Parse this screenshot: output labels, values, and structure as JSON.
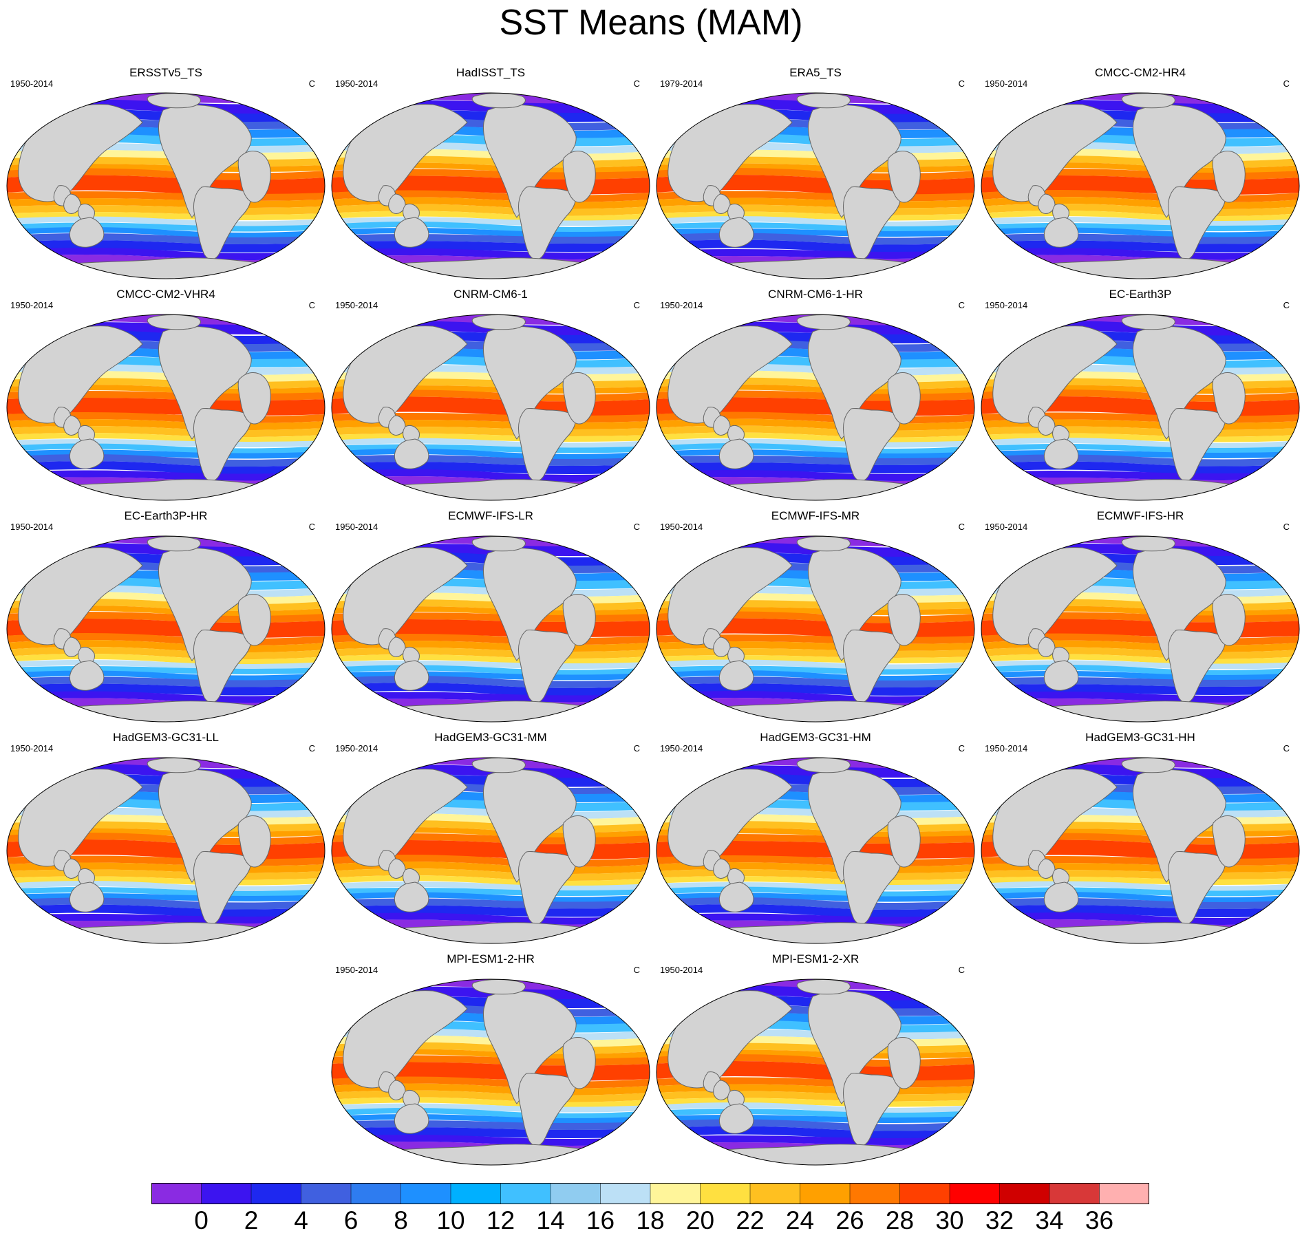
{
  "title": "SST Means (MAM)",
  "units": "C",
  "panels": [
    {
      "name": "ERSSTv5_TS",
      "years": "1950-2014"
    },
    {
      "name": "HadISST_TS",
      "years": "1950-2014"
    },
    {
      "name": "ERA5_TS",
      "years": "1979-2014"
    },
    {
      "name": "CMCC-CM2-HR4",
      "years": "1950-2014"
    },
    {
      "name": "CMCC-CM2-VHR4",
      "years": "1950-2014"
    },
    {
      "name": "CNRM-CM6-1",
      "years": "1950-2014"
    },
    {
      "name": "CNRM-CM6-1-HR",
      "years": "1950-2014"
    },
    {
      "name": "EC-Earth3P",
      "years": "1950-2014"
    },
    {
      "name": "EC-Earth3P-HR",
      "years": "1950-2014"
    },
    {
      "name": "ECMWF-IFS-LR",
      "years": "1950-2014"
    },
    {
      "name": "ECMWF-IFS-MR",
      "years": "1950-2014"
    },
    {
      "name": "ECMWF-IFS-HR",
      "years": "1950-2014"
    },
    {
      "name": "HadGEM3-GC31-LL",
      "years": "1950-2014"
    },
    {
      "name": "HadGEM3-GC31-MM",
      "years": "1950-2014"
    },
    {
      "name": "HadGEM3-GC31-HM",
      "years": "1950-2014"
    },
    {
      "name": "HadGEM3-GC31-HH",
      "years": "1950-2014"
    },
    {
      "name": "MPI-ESM1-2-HR",
      "years": "1950-2014"
    },
    {
      "name": "MPI-ESM1-2-XR",
      "years": "1950-2014"
    }
  ],
  "colorbar": {
    "labels": [
      "0",
      "2",
      "4",
      "6",
      "8",
      "10",
      "12",
      "14",
      "16",
      "18",
      "20",
      "22",
      "24",
      "26",
      "28",
      "30",
      "32",
      "34",
      "36"
    ],
    "colors": [
      "#8a2be2",
      "#3c14f0",
      "#1e28f0",
      "#4060e0",
      "#2e7cf0",
      "#1e90ff",
      "#00b0ff",
      "#40c0ff",
      "#90ccf0",
      "#bce0f6",
      "#fff59a",
      "#ffe040",
      "#ffc020",
      "#ffa000",
      "#ff7800",
      "#ff4000",
      "#ff0000",
      "#d00000",
      "#d83838",
      "#ffb0b0"
    ],
    "land_color": "#d3d3d3"
  }
}
